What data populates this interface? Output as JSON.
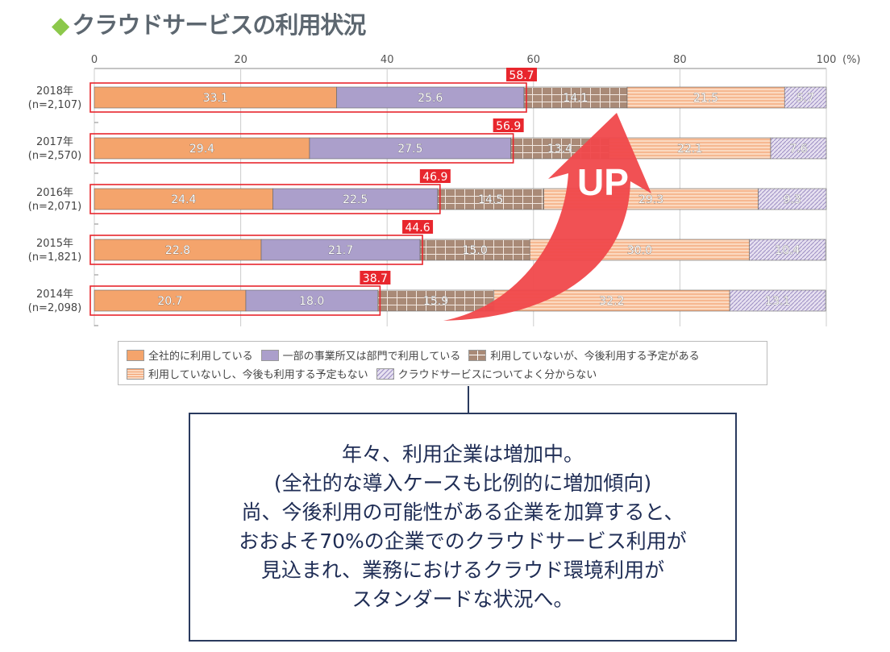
{
  "title": "クラウドサービスの利用状況",
  "title_bullet": "◆",
  "chart_data": {
    "type": "bar",
    "orientation": "horizontal",
    "stacked": true,
    "xlim": [
      0,
      100
    ],
    "xticks": [
      "0",
      "20",
      "40",
      "60",
      "80",
      "100"
    ],
    "x_unit": "(%)",
    "categories": [
      "2018年\n(n=2,107)",
      "2017年\n(n=2,570)",
      "2016年\n(n=2,071)",
      "2015年\n(n=1,821)",
      "2014年\n(n=2,098)"
    ],
    "series": [
      {
        "name": "全社的に利用している",
        "color": "#f4a46c",
        "values": [
          33.1,
          29.4,
          24.4,
          22.8,
          20.7
        ]
      },
      {
        "name": "一部の事業所又は部門で利用している",
        "color": "#ab9fcb",
        "values": [
          25.6,
          27.5,
          22.5,
          21.7,
          18.0
        ]
      },
      {
        "name": "利用していないが、今後利用する予定がある",
        "color": "#a98a77",
        "values": [
          14.1,
          13.4,
          14.5,
          15.0,
          15.9
        ]
      },
      {
        "name": "利用していないし、今後も利用する予定もない",
        "color": "#f9c6a3",
        "values": [
          21.5,
          22.1,
          29.3,
          30.0,
          32.2
        ]
      },
      {
        "name": "クラウドサービスについてよく分からない",
        "color": "#d5cde6",
        "values": [
          5.7,
          7.6,
          9.3,
          10.4,
          13.1
        ]
      }
    ],
    "highlight_totals": [
      "58.7",
      "56.9",
      "46.9",
      "44.6",
      "38.7"
    ],
    "annotation": "UP"
  },
  "note_lines": [
    "年々、利用企業は増加中。",
    "(全社的な導入ケースも比例的に増加傾向)",
    "尚、今後利用の可能性がある企業を加算すると、",
    "おおよそ70%の企業でのクラウドサービス利用が",
    "見込まれ、業務におけるクラウド環境利用が",
    "スタンダードな状況へ。"
  ]
}
